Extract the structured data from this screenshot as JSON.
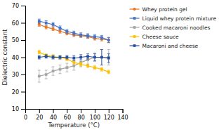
{
  "chart_data": {
    "type": "line",
    "xlabel": "Temperature (°C)",
    "ylabel": "Dielectric constant",
    "x": [
      20,
      30,
      40,
      50,
      60,
      70,
      80,
      90,
      100,
      110,
      120
    ],
    "xlim": [
      0,
      140
    ],
    "ylim": [
      10,
      70
    ],
    "xticks": [
      0,
      20,
      40,
      60,
      80,
      100,
      120,
      140
    ],
    "yticks": [
      10,
      20,
      30,
      40,
      50,
      60,
      70
    ],
    "grid": false,
    "legend": "right",
    "series": [
      {
        "name": "Whey protein gel",
        "color": "#E87422",
        "marker": "circle",
        "values": [
          59,
          57.5,
          56.5,
          55,
          54,
          53,
          52.5,
          52,
          51,
          50.5,
          50
        ],
        "yerr": [
          1.0,
          1.0,
          1.0,
          1.0,
          1.0,
          1.0,
          1.0,
          1.0,
          1.0,
          1.0,
          1.5
        ]
      },
      {
        "name": "Liquid whey protein mixture",
        "color": "#4472C4",
        "marker": "square",
        "values": [
          61,
          60,
          59,
          57,
          55,
          54,
          53,
          52.5,
          52,
          51.5,
          50
        ],
        "yerr": [
          1.2,
          1.2,
          1.2,
          1.2,
          1.2,
          1.2,
          1.2,
          1.2,
          1.2,
          1.2,
          1.5
        ]
      },
      {
        "name": "Cooked macaroni noodles",
        "color": "#A5A5A5",
        "marker": "square",
        "values": [
          29,
          30,
          32,
          33,
          34,
          35,
          37,
          38.5,
          40,
          40,
          40
        ],
        "yerr": [
          3.5,
          2.5,
          2.5,
          2.5,
          2.5,
          2.5,
          2.5,
          2.5,
          2.5,
          4.5,
          4.5
        ]
      },
      {
        "name": "Cheese sauce",
        "color": "#FFC000",
        "marker": "square",
        "values": [
          43,
          41,
          40.5,
          40,
          39,
          37,
          36,
          35,
          34,
          33,
          31.5
        ],
        "yerr": [
          1.0,
          1.0,
          1.0,
          1.0,
          1.0,
          1.0,
          1.0,
          1.0,
          1.0,
          1.0,
          1.0
        ]
      },
      {
        "name": "Macaroni and cheese",
        "color": "#264FA1",
        "marker": "square",
        "values": [
          40,
          40.5,
          40,
          40,
          40,
          39.5,
          40,
          40.5,
          40,
          40,
          39.5
        ],
        "yerr": [
          1.0,
          1.0,
          1.0,
          1.0,
          1.0,
          1.5,
          1.5,
          1.5,
          2.0,
          4.5,
          2.5
        ]
      }
    ]
  }
}
